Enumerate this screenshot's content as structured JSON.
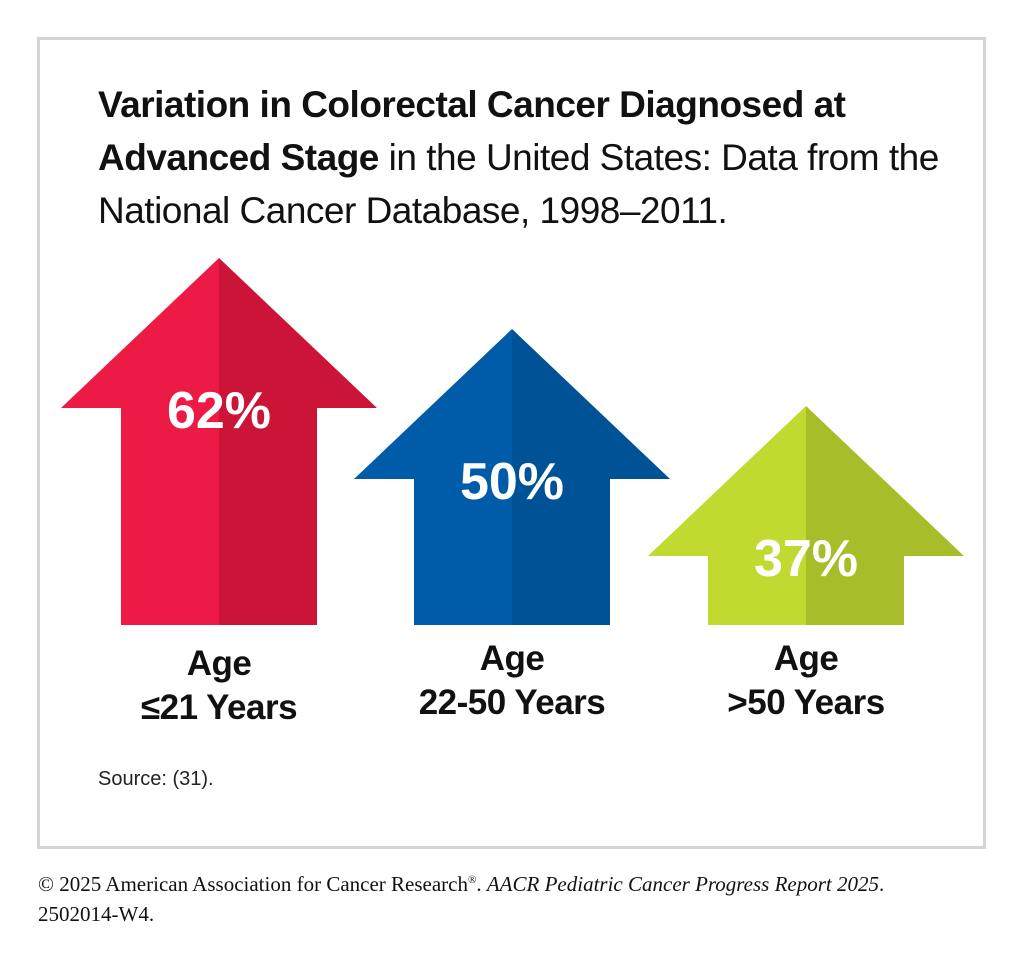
{
  "chart_data": {
    "type": "bar",
    "style": "arrow-infographic",
    "title_bold": "Variation in Colorectal Cancer Diagnosed at Advanced Stage",
    "title_regular": " in the United States: Data from the National Cancer Database, 1998–2011.",
    "categories": [
      "Age ≤21 Years",
      "Age 22-50 Years",
      "Age >50 Years"
    ],
    "values": [
      62,
      50,
      37
    ],
    "value_labels": [
      "62%",
      "50%",
      "37%"
    ],
    "unit": "%",
    "label_lines": [
      [
        "Age",
        "≤21 Years"
      ],
      [
        "Age",
        "22-50 Years"
      ],
      [
        "Age",
        ">50 Years"
      ]
    ],
    "colors": [
      {
        "light": "#ec1a45",
        "dark": "#cc1439"
      },
      {
        "light": "#005ba9",
        "dark": "#005296"
      },
      {
        "light": "#c2d92f",
        "dark": "#a9bd2b"
      }
    ],
    "xlabel": "",
    "ylabel": "",
    "grid": false
  },
  "source": "Source: (31).",
  "footer": {
    "copyright": "© 2025 American Association for Cancer Research",
    "registered": "®",
    "separator": ". ",
    "report_italic": "AACR Pediatric Cancer Progress Report 2025",
    "end": ".",
    "code": "2502014-W4."
  }
}
